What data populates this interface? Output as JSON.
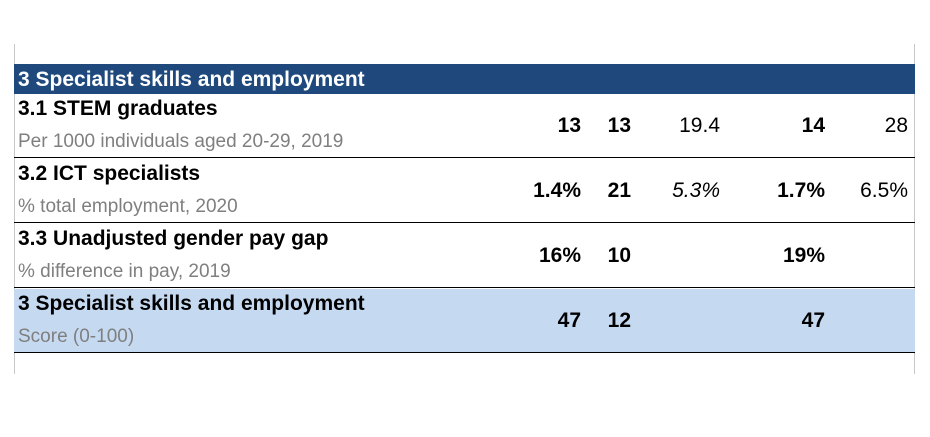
{
  "section": {
    "title": "3 Specialist skills and employment"
  },
  "rows": [
    {
      "title": "3.1 STEM graduates",
      "subtitle": "Per 1000 individuals aged 20-29, 2019",
      "values": [
        "13",
        "13",
        "19.4",
        "14",
        "28"
      ]
    },
    {
      "title": "3.2 ICT specialists",
      "subtitle": "% total employment, 2020",
      "values": [
        "1.4%",
        "21",
        "5.3%",
        "1.7%",
        "6.5%"
      ]
    },
    {
      "title": "3.3 Unadjusted gender pay gap",
      "subtitle": "% difference in pay, 2019",
      "values": [
        "16%",
        "10",
        "",
        "19%",
        ""
      ]
    },
    {
      "title": "3 Specialist skills and employment",
      "subtitle": "Score (0-100)",
      "values": [
        "47",
        "12",
        "",
        "47",
        ""
      ]
    }
  ],
  "colors": {
    "header_bg": "#1f497d",
    "header_text": "#ffffff",
    "score_row_bg": "#c5d9f1",
    "subtitle_text": "#7f7f7f"
  }
}
